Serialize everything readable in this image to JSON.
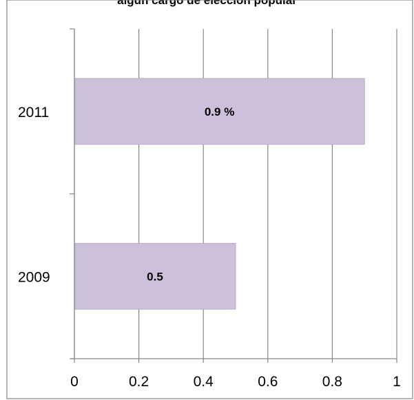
{
  "chart_data": {
    "type": "bar",
    "orientation": "horizontal",
    "title": "algún cargo de elección popular",
    "categories": [
      "2011",
      "2009"
    ],
    "values": [
      0.9,
      0.5
    ],
    "data_labels": [
      "0.9 %",
      "0.5"
    ],
    "xlim": [
      0,
      1
    ],
    "xticks": [
      "0",
      "0.2",
      "0.4",
      "0.6",
      "0.8",
      "1"
    ],
    "grid": true,
    "legend": "none",
    "colors": {
      "bar": "#ccc0da",
      "bar_border": "#b8aec8",
      "grid": "#868686",
      "frame": "#868686"
    }
  }
}
